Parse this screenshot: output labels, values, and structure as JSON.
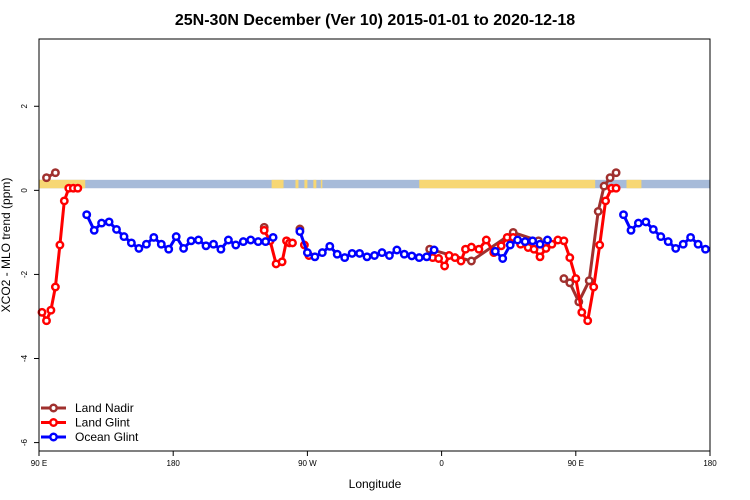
{
  "chart_data": {
    "type": "line",
    "title": "25N-30N December (Ver 10)   2015-01-01 to 2020-12-18",
    "xlabel": "Longitude",
    "ylabel": "XCO2 - MLO trend (ppm)",
    "xlim": [
      90,
      540
    ],
    "ylim": [
      -6.2,
      3.6
    ],
    "x_ticks": [
      {
        "value": 90,
        "label": "90 E"
      },
      {
        "value": 180,
        "label": "180"
      },
      {
        "value": 270,
        "label": "90 W"
      },
      {
        "value": 360,
        "label": "0"
      },
      {
        "value": 450,
        "label": "90 E"
      },
      {
        "value": 540,
        "label": "180"
      }
    ],
    "y_ticks": [
      {
        "value": 2,
        "label": "2"
      },
      {
        "value": 0,
        "label": "0"
      },
      {
        "value": -2,
        "label": "-2"
      },
      {
        "value": -4,
        "label": "-4"
      },
      {
        "value": -6,
        "label": "-6"
      }
    ],
    "legend_position": "bottom-left",
    "grid": false,
    "land_sea_band": {
      "y_range": [
        0.05,
        0.25
      ],
      "sea_color": "#a7bbd9",
      "land_color": "#f7d774",
      "land_segments": [
        [
          90,
          121
        ],
        [
          246,
          254
        ],
        [
          262,
          264
        ],
        [
          268,
          270
        ],
        [
          274,
          276
        ],
        [
          279,
          280
        ],
        [
          345,
          463
        ],
        [
          484,
          494
        ]
      ]
    },
    "series": [
      {
        "name": "Land Nadir",
        "color": "#a0302e",
        "segments": [
          [
            [
              95,
              0.3
            ],
            [
              101,
              0.42
            ]
          ],
          [
            [
              241,
              -0.88
            ]
          ],
          [
            [
              265,
              -0.92
            ]
          ],
          [
            [
              352,
              -1.4
            ],
            [
              380,
              -1.68
            ],
            [
              408,
              -1.0
            ],
            [
              425,
              -1.2
            ]
          ],
          [
            [
              442,
              -2.1
            ],
            [
              446,
              -2.2
            ],
            [
              452,
              -2.65
            ],
            [
              459,
              -2.15
            ],
            [
              465,
              -0.5
            ],
            [
              469,
              0.1
            ],
            [
              473,
              0.3
            ],
            [
              477,
              0.42
            ]
          ]
        ]
      },
      {
        "name": "Land Glint",
        "color": "#ff0000",
        "segments": [
          [
            [
              92,
              -2.9
            ],
            [
              95,
              -3.1
            ],
            [
              98,
              -2.85
            ],
            [
              101,
              -2.3
            ],
            [
              104,
              -1.3
            ],
            [
              107,
              -0.25
            ],
            [
              110,
              0.05
            ],
            [
              113,
              0.05
            ],
            [
              116,
              0.05
            ]
          ],
          [
            [
              241,
              -0.95
            ],
            [
              245,
              -1.2
            ],
            [
              249,
              -1.75
            ],
            [
              253,
              -1.7
            ],
            [
              256,
              -1.2
            ],
            [
              258,
              -1.25
            ],
            [
              260,
              -1.25
            ]
          ],
          [
            [
              268,
              -1.3
            ],
            [
              271,
              -1.55
            ]
          ],
          [
            [
              354,
              -1.6
            ],
            [
              358,
              -1.62
            ],
            [
              362,
              -1.8
            ],
            [
              365,
              -1.55
            ],
            [
              369,
              -1.6
            ],
            [
              373,
              -1.68
            ],
            [
              376,
              -1.4
            ],
            [
              380,
              -1.35
            ],
            [
              385,
              -1.4
            ],
            [
              390,
              -1.18
            ],
            [
              395,
              -1.48
            ],
            [
              400,
              -1.32
            ],
            [
              404,
              -1.12
            ],
            [
              408,
              -1.12
            ],
            [
              413,
              -1.28
            ],
            [
              418,
              -1.36
            ],
            [
              422,
              -1.4
            ],
            [
              426,
              -1.58
            ],
            [
              430,
              -1.38
            ],
            [
              434,
              -1.28
            ],
            [
              438,
              -1.18
            ],
            [
              442,
              -1.2
            ],
            [
              446,
              -1.6
            ],
            [
              450,
              -2.1
            ],
            [
              454,
              -2.9
            ],
            [
              458,
              -3.1
            ],
            [
              462,
              -2.3
            ],
            [
              466,
              -1.3
            ],
            [
              470,
              -0.25
            ],
            [
              474,
              0.05
            ],
            [
              477,
              0.05
            ]
          ]
        ]
      },
      {
        "name": "Ocean Glint",
        "color": "#0000ff",
        "segments": [
          [
            [
              122,
              -0.58
            ],
            [
              127,
              -0.95
            ],
            [
              132,
              -0.78
            ],
            [
              137,
              -0.75
            ],
            [
              142,
              -0.93
            ],
            [
              147,
              -1.1
            ],
            [
              152,
              -1.25
            ],
            [
              157,
              -1.38
            ],
            [
              162,
              -1.28
            ],
            [
              167,
              -1.12
            ],
            [
              172,
              -1.28
            ],
            [
              177,
              -1.4
            ],
            [
              182,
              -1.1
            ],
            [
              187,
              -1.38
            ],
            [
              192,
              -1.2
            ],
            [
              197,
              -1.18
            ],
            [
              202,
              -1.32
            ],
            [
              207,
              -1.28
            ],
            [
              212,
              -1.4
            ],
            [
              217,
              -1.18
            ],
            [
              222,
              -1.3
            ],
            [
              227,
              -1.22
            ],
            [
              232,
              -1.18
            ],
            [
              237,
              -1.22
            ],
            [
              242,
              -1.22
            ],
            [
              247,
              -1.12
            ]
          ],
          [
            [
              265,
              -0.98
            ],
            [
              270,
              -1.48
            ],
            [
              275,
              -1.58
            ],
            [
              280,
              -1.48
            ],
            [
              285,
              -1.33
            ],
            [
              290,
              -1.52
            ],
            [
              295,
              -1.6
            ],
            [
              300,
              -1.5
            ],
            [
              305,
              -1.5
            ],
            [
              310,
              -1.58
            ],
            [
              315,
              -1.55
            ],
            [
              320,
              -1.48
            ],
            [
              325,
              -1.55
            ],
            [
              330,
              -1.42
            ],
            [
              335,
              -1.52
            ],
            [
              340,
              -1.56
            ],
            [
              345,
              -1.6
            ],
            [
              350,
              -1.58
            ],
            [
              355,
              -1.42
            ]
          ],
          [
            [
              396,
              -1.45
            ],
            [
              401,
              -1.62
            ],
            [
              406,
              -1.3
            ],
            [
              411,
              -1.18
            ],
            [
              416,
              -1.22
            ],
            [
              421,
              -1.2
            ],
            [
              426,
              -1.28
            ],
            [
              431,
              -1.18
            ]
          ],
          [
            [
              482,
              -0.58
            ],
            [
              487,
              -0.95
            ],
            [
              492,
              -0.78
            ],
            [
              497,
              -0.75
            ],
            [
              502,
              -0.93
            ],
            [
              507,
              -1.1
            ],
            [
              512,
              -1.22
            ],
            [
              517,
              -1.38
            ],
            [
              522,
              -1.28
            ],
            [
              527,
              -1.12
            ],
            [
              532,
              -1.28
            ],
            [
              537,
              -1.4
            ]
          ]
        ]
      }
    ]
  }
}
